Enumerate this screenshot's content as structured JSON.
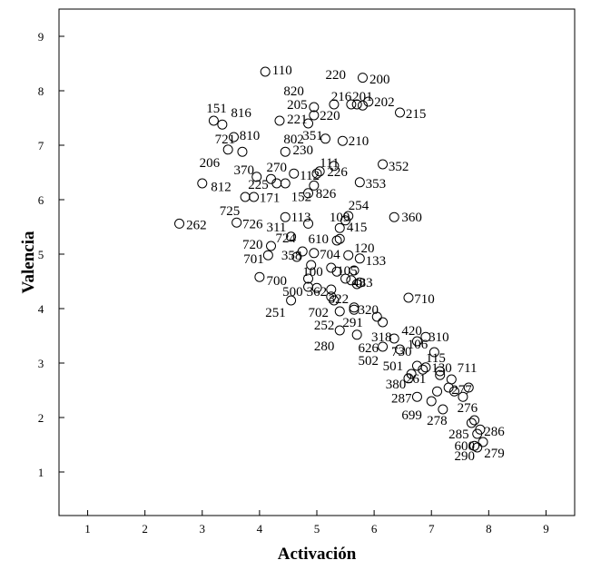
{
  "chart_data": {
    "type": "scatter",
    "title": "",
    "xlabel": "Activación",
    "ylabel": "Valencia",
    "xlim": [
      0.5,
      9.5
    ],
    "ylim": [
      0.2,
      9.5
    ],
    "xticks": [
      1,
      2,
      3,
      4,
      5,
      6,
      7,
      8,
      9
    ],
    "yticks": [
      1,
      2,
      3,
      4,
      5,
      6,
      7,
      8,
      9
    ],
    "grid": false,
    "marker": "open-circle",
    "marker_color": "#000000",
    "series": [
      {
        "points": [
          {
            "x": 4.1,
            "y": 8.35
          },
          {
            "x": 5.8,
            "y": 8.24
          },
          {
            "x": 5.9,
            "y": 7.8
          },
          {
            "x": 5.7,
            "y": 7.75
          },
          {
            "x": 5.6,
            "y": 7.75
          },
          {
            "x": 5.8,
            "y": 7.73
          },
          {
            "x": 5.3,
            "y": 7.75
          },
          {
            "x": 4.95,
            "y": 7.7
          },
          {
            "x": 6.45,
            "y": 7.6
          },
          {
            "x": 4.95,
            "y": 7.55
          },
          {
            "x": 4.35,
            "y": 7.45
          },
          {
            "x": 4.85,
            "y": 7.4
          },
          {
            "x": 3.2,
            "y": 7.45
          },
          {
            "x": 3.35,
            "y": 7.38
          },
          {
            "x": 3.55,
            "y": 7.15
          },
          {
            "x": 5.15,
            "y": 7.12
          },
          {
            "x": 5.45,
            "y": 7.08
          },
          {
            "x": 3.45,
            "y": 6.92
          },
          {
            "x": 3.7,
            "y": 6.88
          },
          {
            "x": 4.45,
            "y": 6.88
          },
          {
            "x": 6.15,
            "y": 6.65
          },
          {
            "x": 5.3,
            "y": 6.62
          },
          {
            "x": 5.05,
            "y": 6.52
          },
          {
            "x": 4.6,
            "y": 6.48
          },
          {
            "x": 5.0,
            "y": 6.48
          },
          {
            "x": 3.95,
            "y": 6.42
          },
          {
            "x": 4.2,
            "y": 6.38
          },
          {
            "x": 4.3,
            "y": 6.3
          },
          {
            "x": 4.45,
            "y": 6.3
          },
          {
            "x": 5.75,
            "y": 6.32
          },
          {
            "x": 3.0,
            "y": 6.3
          },
          {
            "x": 4.95,
            "y": 6.26
          },
          {
            "x": 4.85,
            "y": 6.12
          },
          {
            "x": 3.75,
            "y": 6.05
          },
          {
            "x": 3.9,
            "y": 6.05
          },
          {
            "x": 5.55,
            "y": 5.7
          },
          {
            "x": 5.5,
            "y": 5.62
          },
          {
            "x": 6.35,
            "y": 5.68
          },
          {
            "x": 4.45,
            "y": 5.68
          },
          {
            "x": 3.6,
            "y": 5.58
          },
          {
            "x": 4.85,
            "y": 5.56
          },
          {
            "x": 2.6,
            "y": 5.56
          },
          {
            "x": 5.4,
            "y": 5.48
          },
          {
            "x": 4.55,
            "y": 5.32
          },
          {
            "x": 5.35,
            "y": 5.25
          },
          {
            "x": 5.4,
            "y": 5.28
          },
          {
            "x": 4.2,
            "y": 5.15
          },
          {
            "x": 4.75,
            "y": 5.05
          },
          {
            "x": 4.95,
            "y": 5.02
          },
          {
            "x": 4.15,
            "y": 4.98
          },
          {
            "x": 4.65,
            "y": 4.95
          },
          {
            "x": 5.55,
            "y": 4.98
          },
          {
            "x": 5.75,
            "y": 4.92
          },
          {
            "x": 4.9,
            "y": 4.8
          },
          {
            "x": 5.25,
            "y": 4.75
          },
          {
            "x": 5.65,
            "y": 4.7
          },
          {
            "x": 5.35,
            "y": 4.68
          },
          {
            "x": 4.85,
            "y": 4.55
          },
          {
            "x": 5.5,
            "y": 4.55
          },
          {
            "x": 5.6,
            "y": 4.52
          },
          {
            "x": 5.7,
            "y": 4.45
          },
          {
            "x": 5.75,
            "y": 4.48
          },
          {
            "x": 4.0,
            "y": 4.58
          },
          {
            "x": 4.85,
            "y": 4.4
          },
          {
            "x": 5.0,
            "y": 4.38
          },
          {
            "x": 5.25,
            "y": 4.35
          },
          {
            "x": 5.25,
            "y": 4.22
          },
          {
            "x": 5.3,
            "y": 4.15
          },
          {
            "x": 4.55,
            "y": 4.15
          },
          {
            "x": 6.6,
            "y": 4.2
          },
          {
            "x": 5.65,
            "y": 4.02
          },
          {
            "x": 5.65,
            "y": 3.98
          },
          {
            "x": 5.4,
            "y": 3.95
          },
          {
            "x": 6.05,
            "y": 3.85
          },
          {
            "x": 6.15,
            "y": 3.75
          },
          {
            "x": 5.4,
            "y": 3.6
          },
          {
            "x": 5.7,
            "y": 3.52
          },
          {
            "x": 6.35,
            "y": 3.45
          },
          {
            "x": 6.9,
            "y": 3.48
          },
          {
            "x": 6.75,
            "y": 3.4
          },
          {
            "x": 6.15,
            "y": 3.3
          },
          {
            "x": 6.45,
            "y": 3.25
          },
          {
            "x": 7.05,
            "y": 3.2
          },
          {
            "x": 6.75,
            "y": 2.95
          },
          {
            "x": 6.9,
            "y": 2.92
          },
          {
            "x": 7.15,
            "y": 2.85
          },
          {
            "x": 6.85,
            "y": 2.88
          },
          {
            "x": 7.15,
            "y": 2.78
          },
          {
            "x": 6.65,
            "y": 2.8
          },
          {
            "x": 6.6,
            "y": 2.72
          },
          {
            "x": 7.35,
            "y": 2.7
          },
          {
            "x": 7.65,
            "y": 2.55
          },
          {
            "x": 7.3,
            "y": 2.55
          },
          {
            "x": 7.1,
            "y": 2.48
          },
          {
            "x": 7.4,
            "y": 2.48
          },
          {
            "x": 7.55,
            "y": 2.38
          },
          {
            "x": 6.75,
            "y": 2.38
          },
          {
            "x": 7.0,
            "y": 2.3
          },
          {
            "x": 7.2,
            "y": 2.15
          },
          {
            "x": 7.75,
            "y": 1.95
          },
          {
            "x": 7.7,
            "y": 1.9
          },
          {
            "x": 7.85,
            "y": 1.78
          },
          {
            "x": 7.8,
            "y": 1.7
          },
          {
            "x": 7.9,
            "y": 1.55
          },
          {
            "x": 7.75,
            "y": 1.48
          },
          {
            "x": 7.8,
            "y": 1.45
          }
        ]
      }
    ],
    "annotations": [
      {
        "text": "110",
        "x": 4.22,
        "y": 8.38
      },
      {
        "text": "220",
        "x": 5.15,
        "y": 8.3
      },
      {
        "text": "200",
        "x": 5.92,
        "y": 8.22
      },
      {
        "text": "820",
        "x": 4.42,
        "y": 8.0
      },
      {
        "text": "216",
        "x": 5.25,
        "y": 7.9
      },
      {
        "text": "201",
        "x": 5.62,
        "y": 7.9
      },
      {
        "text": "202",
        "x": 6.0,
        "y": 7.8
      },
      {
        "text": "205",
        "x": 4.48,
        "y": 7.75
      },
      {
        "text": "151",
        "x": 3.07,
        "y": 7.68
      },
      {
        "text": "816",
        "x": 3.5,
        "y": 7.6
      },
      {
        "text": "215",
        "x": 6.55,
        "y": 7.58
      },
      {
        "text": "221",
        "x": 4.48,
        "y": 7.48
      },
      {
        "text": "220",
        "x": 5.05,
        "y": 7.55
      },
      {
        "text": "721",
        "x": 3.22,
        "y": 7.12
      },
      {
        "text": "810",
        "x": 3.65,
        "y": 7.18
      },
      {
        "text": "802",
        "x": 4.42,
        "y": 7.12
      },
      {
        "text": "351",
        "x": 4.75,
        "y": 7.18
      },
      {
        "text": "210",
        "x": 5.55,
        "y": 7.08
      },
      {
        "text": "230",
        "x": 4.58,
        "y": 6.92
      },
      {
        "text": "206",
        "x": 2.95,
        "y": 6.68
      },
      {
        "text": "111",
        "x": 5.05,
        "y": 6.68
      },
      {
        "text": "352",
        "x": 6.25,
        "y": 6.62
      },
      {
        "text": "370",
        "x": 3.55,
        "y": 6.55
      },
      {
        "text": "270",
        "x": 4.12,
        "y": 6.6
      },
      {
        "text": "112",
        "x": 4.7,
        "y": 6.45
      },
      {
        "text": "226",
        "x": 5.18,
        "y": 6.52
      },
      {
        "text": "225",
        "x": 3.8,
        "y": 6.28
      },
      {
        "text": "353",
        "x": 5.85,
        "y": 6.3
      },
      {
        "text": "812",
        "x": 3.15,
        "y": 6.24
      },
      {
        "text": "152",
        "x": 4.55,
        "y": 6.06
      },
      {
        "text": "826",
        "x": 4.98,
        "y": 6.12
      },
      {
        "text": "171",
        "x": 4.0,
        "y": 6.04
      },
      {
        "text": "254",
        "x": 5.55,
        "y": 5.9
      },
      {
        "text": "725",
        "x": 3.3,
        "y": 5.8
      },
      {
        "text": "113",
        "x": 4.55,
        "y": 5.68
      },
      {
        "text": "109",
        "x": 5.22,
        "y": 5.68
      },
      {
        "text": "360",
        "x": 6.48,
        "y": 5.68
      },
      {
        "text": "726",
        "x": 3.7,
        "y": 5.56
      },
      {
        "text": "262",
        "x": 2.72,
        "y": 5.54
      },
      {
        "text": "311",
        "x": 4.12,
        "y": 5.5
      },
      {
        "text": "415",
        "x": 5.52,
        "y": 5.5
      },
      {
        "text": "724",
        "x": 4.28,
        "y": 5.3
      },
      {
        "text": "610",
        "x": 4.85,
        "y": 5.28
      },
      {
        "text": "720",
        "x": 3.7,
        "y": 5.18
      },
      {
        "text": "120",
        "x": 5.65,
        "y": 5.12
      },
      {
        "text": "358",
        "x": 4.38,
        "y": 4.98
      },
      {
        "text": "704",
        "x": 5.05,
        "y": 5.0
      },
      {
        "text": "701",
        "x": 3.72,
        "y": 4.92
      },
      {
        "text": "133",
        "x": 5.85,
        "y": 4.88
      },
      {
        "text": "100",
        "x": 4.75,
        "y": 4.68
      },
      {
        "text": "105",
        "x": 5.35,
        "y": 4.7
      },
      {
        "text": "700",
        "x": 4.12,
        "y": 4.52
      },
      {
        "text": "483",
        "x": 5.62,
        "y": 4.48
      },
      {
        "text": "500",
        "x": 4.4,
        "y": 4.32
      },
      {
        "text": "362",
        "x": 4.82,
        "y": 4.32
      },
      {
        "text": "322",
        "x": 5.2,
        "y": 4.18
      },
      {
        "text": "710",
        "x": 6.7,
        "y": 4.18
      },
      {
        "text": "251",
        "x": 4.1,
        "y": 3.93
      },
      {
        "text": "702",
        "x": 4.85,
        "y": 3.93
      },
      {
        "text": "320",
        "x": 5.72,
        "y": 3.98
      },
      {
        "text": "291",
        "x": 5.45,
        "y": 3.75
      },
      {
        "text": "252",
        "x": 4.95,
        "y": 3.7
      },
      {
        "text": "420",
        "x": 6.48,
        "y": 3.6
      },
      {
        "text": "318",
        "x": 5.95,
        "y": 3.48
      },
      {
        "text": "310",
        "x": 6.95,
        "y": 3.48
      },
      {
        "text": "106",
        "x": 6.58,
        "y": 3.35
      },
      {
        "text": "280",
        "x": 4.95,
        "y": 3.32
      },
      {
        "text": "626",
        "x": 5.72,
        "y": 3.28
      },
      {
        "text": "730",
        "x": 6.3,
        "y": 3.22
      },
      {
        "text": "115",
        "x": 6.9,
        "y": 3.1
      },
      {
        "text": "502",
        "x": 5.72,
        "y": 3.05
      },
      {
        "text": "501",
        "x": 6.15,
        "y": 2.95
      },
      {
        "text": "130",
        "x": 7.0,
        "y": 2.92
      },
      {
        "text": "711",
        "x": 7.45,
        "y": 2.92
      },
      {
        "text": "261",
        "x": 6.55,
        "y": 2.72
      },
      {
        "text": "277",
        "x": 7.35,
        "y": 2.52
      },
      {
        "text": "380",
        "x": 6.2,
        "y": 2.62
      },
      {
        "text": "287",
        "x": 6.3,
        "y": 2.36
      },
      {
        "text": "276",
        "x": 7.45,
        "y": 2.18
      },
      {
        "text": "699",
        "x": 6.48,
        "y": 2.05
      },
      {
        "text": "278",
        "x": 6.92,
        "y": 1.95
      },
      {
        "text": "286",
        "x": 7.92,
        "y": 1.75
      },
      {
        "text": "285",
        "x": 7.3,
        "y": 1.7
      },
      {
        "text": "600",
        "x": 7.4,
        "y": 1.48
      },
      {
        "text": "279",
        "x": 7.92,
        "y": 1.35
      },
      {
        "text": "290",
        "x": 7.4,
        "y": 1.3
      }
    ]
  }
}
